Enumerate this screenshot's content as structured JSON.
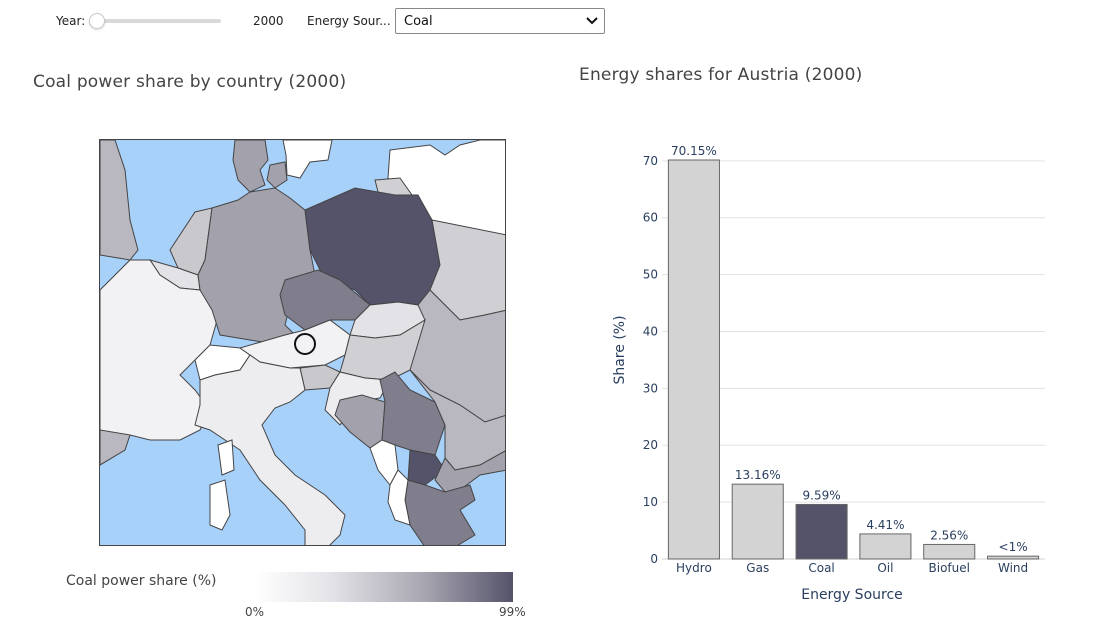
{
  "controls": {
    "year_label": "Year:",
    "year_value": "2000",
    "source_label": "Energy Sour...",
    "source_selected": "Coal"
  },
  "map": {
    "title": "Coal power share by country (2000)",
    "colorbar_title": "Coal power share (%)",
    "colorbar_min": "0%",
    "colorbar_max": "99%",
    "colors": {
      "sea": "#a8d1fa",
      "low": "#ffffff",
      "high": "#55536a"
    }
  },
  "bar": {
    "title": "Energy shares for Austria (2000)"
  },
  "chart_data": {
    "type": "bar",
    "categories": [
      "Hydro",
      "Gas",
      "Coal",
      "Oil",
      "Biofuel",
      "Wind"
    ],
    "values": [
      70.15,
      13.16,
      9.59,
      4.41,
      2.56,
      0.5
    ],
    "data_labels": [
      "70.15%",
      "13.16%",
      "9.59%",
      "4.41%",
      "2.56%",
      "<1%"
    ],
    "highlight_category": "Coal",
    "highlight_color": "#55536a",
    "bar_color": "#d3d3d3",
    "xlabel": "Energy Source",
    "ylabel": "Share (%)",
    "ylim": [
      0,
      70.15
    ],
    "yticks": [
      0,
      10,
      20,
      30,
      40,
      50,
      60,
      70
    ],
    "grid": true
  }
}
